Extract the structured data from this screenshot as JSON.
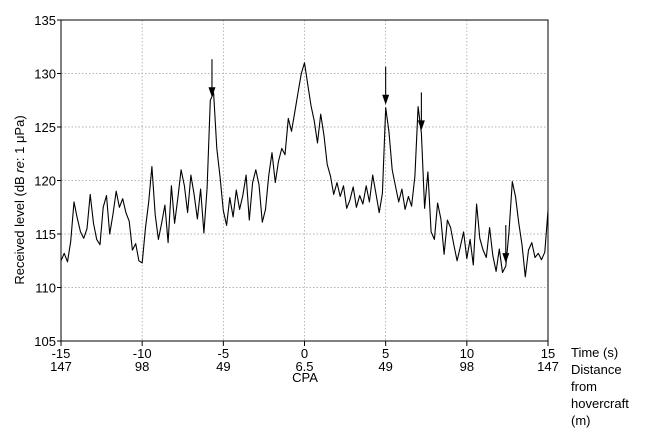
{
  "chart_data": {
    "type": "line",
    "ylabel_parts": [
      "Received level (dB ",
      "re",
      ": 1 μPa)"
    ],
    "ylim": [
      105,
      135
    ],
    "yticks": [
      105,
      110,
      115,
      120,
      125,
      130,
      135
    ],
    "xlim": [
      -15,
      15
    ],
    "xticks": [
      -15,
      -10,
      -5,
      0,
      5,
      10,
      15
    ],
    "xtick_labels": [
      "-15",
      "-10",
      "-5",
      "0",
      "5",
      "10",
      "15"
    ],
    "distance_labels": [
      "147",
      "98",
      "49",
      "6.5",
      "49",
      "98",
      "147"
    ],
    "cpa_label": "CPA",
    "xlabel_time": "Time (s)",
    "xlabel_distance_lines": [
      "Distance",
      "from",
      "hovercraft",
      "(m)"
    ],
    "grid": true,
    "arrows_at": [
      -5.7,
      5.0,
      7.2,
      12.4
    ],
    "series": [
      {
        "x": [
          -15.0,
          -14.8,
          -14.6,
          -14.4,
          -14.2,
          -14.0,
          -13.8,
          -13.6,
          -13.4,
          -13.2,
          -13.0,
          -12.8,
          -12.6,
          -12.4,
          -12.2,
          -12.0,
          -11.8,
          -11.6,
          -11.4,
          -11.2,
          -11.0,
          -10.8,
          -10.6,
          -10.4,
          -10.2,
          -10.0,
          -9.8,
          -9.6,
          -9.4,
          -9.2,
          -9.0,
          -8.8,
          -8.6,
          -8.4,
          -8.2,
          -8.0,
          -7.8,
          -7.6,
          -7.4,
          -7.2,
          -7.0,
          -6.8,
          -6.6,
          -6.4,
          -6.2,
          -6.0,
          -5.8,
          -5.6,
          -5.4,
          -5.2,
          -5.0,
          -4.8,
          -4.6,
          -4.4,
          -4.2,
          -4.0,
          -3.8,
          -3.6,
          -3.4,
          -3.2,
          -3.0,
          -2.8,
          -2.6,
          -2.4,
          -2.2,
          -2.0,
          -1.8,
          -1.6,
          -1.4,
          -1.2,
          -1.0,
          -0.8,
          -0.6,
          -0.4,
          -0.2,
          0.0,
          0.2,
          0.4,
          0.6,
          0.8,
          1.0,
          1.2,
          1.4,
          1.6,
          1.8,
          2.0,
          2.2,
          2.4,
          2.6,
          2.8,
          3.0,
          3.2,
          3.4,
          3.6,
          3.8,
          4.0,
          4.2,
          4.4,
          4.6,
          4.8,
          5.0,
          5.2,
          5.4,
          5.6,
          5.8,
          6.0,
          6.2,
          6.4,
          6.6,
          6.8,
          7.0,
          7.2,
          7.4,
          7.6,
          7.8,
          8.0,
          8.2,
          8.4,
          8.6,
          8.8,
          9.0,
          9.2,
          9.4,
          9.6,
          9.8,
          10.0,
          10.2,
          10.4,
          10.6,
          10.8,
          11.0,
          11.2,
          11.4,
          11.6,
          11.8,
          12.0,
          12.2,
          12.4,
          12.6,
          12.8,
          13.0,
          13.2,
          13.4,
          13.6,
          13.8,
          14.0,
          14.2,
          14.4,
          14.6,
          14.8,
          15.0
        ],
        "y": [
          112.5,
          113.2,
          112.4,
          114.3,
          118.0,
          116.5,
          115.2,
          114.6,
          115.5,
          118.7,
          116.0,
          114.5,
          114.0,
          117.5,
          118.6,
          115.0,
          116.8,
          119.0,
          117.5,
          118.3,
          117.0,
          116.2,
          113.5,
          114.1,
          112.5,
          112.3,
          115.5,
          118.0,
          121.3,
          116.8,
          114.5,
          116.0,
          117.7,
          114.2,
          119.5,
          116.0,
          118.4,
          121.0,
          119.5,
          117.0,
          120.5,
          118.7,
          116.4,
          119.2,
          115.1,
          119.3,
          127.5,
          128.2,
          123.0,
          120.3,
          117.2,
          115.8,
          118.4,
          116.6,
          119.1,
          117.3,
          118.6,
          120.5,
          116.3,
          119.8,
          121.0,
          119.6,
          116.1,
          117.3,
          120.5,
          122.6,
          119.8,
          121.8,
          123.0,
          122.4,
          125.8,
          124.6,
          126.4,
          128.2,
          130.0,
          131.0,
          129.0,
          127.0,
          125.6,
          123.5,
          126.2,
          124.2,
          121.5,
          120.4,
          118.7,
          119.8,
          118.5,
          119.5,
          117.4,
          118.2,
          119.4,
          117.5,
          118.6,
          117.8,
          119.5,
          118.0,
          120.5,
          118.8,
          117.0,
          118.8,
          126.8,
          124.6,
          121.0,
          119.5,
          118.0,
          119.2,
          117.3,
          118.5,
          117.6,
          120.4,
          126.9,
          124.4,
          117.4,
          120.8,
          115.2,
          114.5,
          117.9,
          116.4,
          113.1,
          116.3,
          115.6,
          114.0,
          112.5,
          113.8,
          115.2,
          112.7,
          114.5,
          112.1,
          117.8,
          114.6,
          113.5,
          112.8,
          115.6,
          113.0,
          111.5,
          113.6,
          111.4,
          112.0,
          115.2,
          119.9,
          118.5,
          116.0,
          114.0,
          111.0,
          113.5,
          114.2,
          112.8,
          113.2,
          112.6,
          113.3,
          117.2
        ]
      }
    ]
  }
}
